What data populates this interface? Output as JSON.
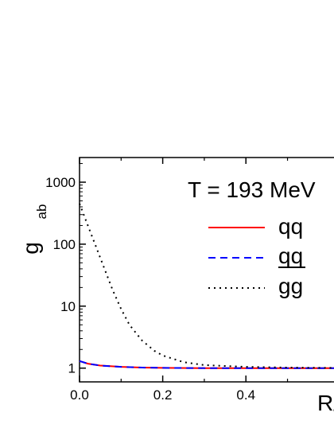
{
  "chart_data": {
    "type": "line",
    "title": "",
    "xlabel": "R/σ",
    "ylabel": "g_ab",
    "ylabel_main": "g",
    "ylabel_sub": "ab",
    "xlim": [
      0.0,
      0.65
    ],
    "ylim": [
      0.6,
      2500
    ],
    "yscale": "log",
    "annotation": "T = 193 MeV",
    "legend_position": "right",
    "x_ticks": [
      0.0,
      0.2,
      0.4
    ],
    "x_tick_labels": [
      "0.0",
      "0.2",
      "0.4"
    ],
    "y_ticks": [
      1,
      10,
      100,
      1000
    ],
    "y_tick_labels": [
      "1",
      "10",
      "100",
      "1000"
    ],
    "series": [
      {
        "name": "qq",
        "color": "#ff0000",
        "style": "solid",
        "x": [
          0.0,
          0.02,
          0.05,
          0.1,
          0.15,
          0.2,
          0.3,
          0.4,
          0.5,
          0.6,
          0.65
        ],
        "y": [
          1.3,
          1.18,
          1.1,
          1.05,
          1.02,
          1.01,
          1.0,
          1.0,
          1.0,
          1.0,
          1.0
        ]
      },
      {
        "name": "qq",
        "name_overline": true,
        "color": "#0000ff",
        "style": "dashed",
        "x": [
          0.0,
          0.02,
          0.05,
          0.1,
          0.15,
          0.2,
          0.3,
          0.4,
          0.5,
          0.6,
          0.65
        ],
        "y": [
          1.3,
          1.18,
          1.1,
          1.05,
          1.02,
          1.01,
          1.0,
          1.0,
          1.0,
          1.0,
          1.0
        ]
      },
      {
        "name": "gg",
        "color": "#000000",
        "style": "dotted",
        "x": [
          0.0,
          0.02,
          0.04,
          0.06,
          0.08,
          0.1,
          0.12,
          0.15,
          0.18,
          0.2,
          0.25,
          0.3,
          0.4,
          0.5,
          0.6,
          0.65
        ],
        "y": [
          450,
          200,
          90,
          40,
          18,
          9,
          5,
          2.8,
          1.9,
          1.6,
          1.25,
          1.12,
          1.05,
          1.02,
          1.01,
          1.0
        ]
      }
    ]
  }
}
